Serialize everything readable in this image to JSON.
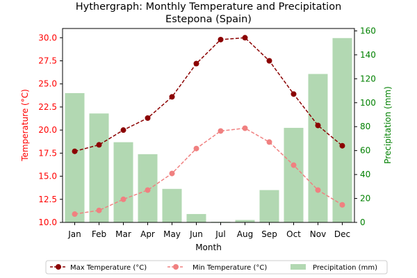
{
  "chart_data": {
    "type": "bar+line",
    "title": "Hythergraph: Monthly Temperature and Precipitation",
    "subtitle": "Estepona (Spain)",
    "xlabel": "Month",
    "ylabel_left": "Temperature (°C)",
    "ylabel_right": "Precipitation (mm)",
    "categories": [
      "Jan",
      "Feb",
      "Mar",
      "Apr",
      "May",
      "Jun",
      "Jul",
      "Aug",
      "Sep",
      "Oct",
      "Nov",
      "Dec"
    ],
    "ylim_left": [
      10.0,
      31.0
    ],
    "ylim_right": [
      0,
      162
    ],
    "yticks_left": [
      "10.0",
      "12.5",
      "15.0",
      "17.5",
      "20.0",
      "22.5",
      "25.0",
      "27.5",
      "30.0"
    ],
    "yticks_right": [
      "0",
      "20",
      "40",
      "60",
      "80",
      "100",
      "120",
      "140",
      "160"
    ],
    "series": [
      {
        "name": "Max Temperature (°C)",
        "kind": "line",
        "axis": "left",
        "color": "#8b0000",
        "values": [
          17.7,
          18.4,
          20.0,
          21.3,
          23.6,
          27.2,
          29.8,
          30.0,
          27.5,
          23.9,
          20.5,
          18.3
        ]
      },
      {
        "name": "Min Temperature (°C)",
        "kind": "line",
        "axis": "left",
        "color": "#f08080",
        "values": [
          10.9,
          11.3,
          12.5,
          13.5,
          15.3,
          18.0,
          19.9,
          20.2,
          18.7,
          16.2,
          13.5,
          11.9
        ]
      },
      {
        "name": "Precipitation (mm)",
        "kind": "bar",
        "axis": "right",
        "color": "#b2d8b2",
        "values": [
          108,
          91,
          67,
          57,
          28,
          7,
          0.5,
          2,
          27,
          79,
          124,
          154
        ]
      }
    ],
    "legend": "bottom-center",
    "grid": false,
    "colors": {
      "left_axis": "#ff0000",
      "right_axis": "#008000"
    }
  }
}
